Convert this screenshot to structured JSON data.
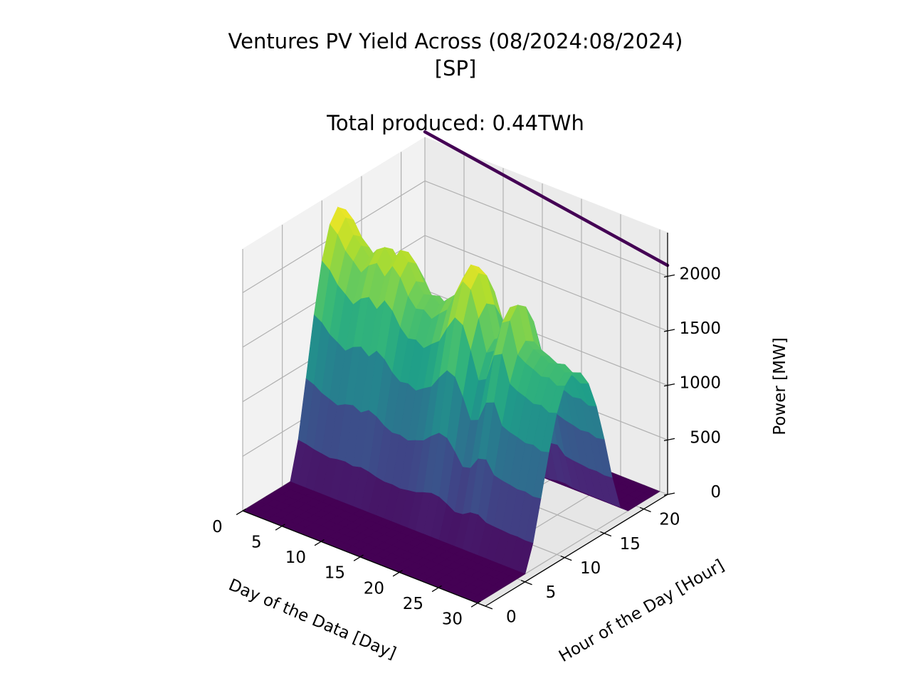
{
  "chart_data": {
    "type": "surface3d",
    "title": "Ventures PV Yield Across (08/2024:08/2024)",
    "title_line2": "[SP]",
    "subtitle": "Total produced: 0.44TWh",
    "xlabel": "Day of the Data [Day]",
    "ylabel": "Hour of the Day [Hour]",
    "zlabel": "Power [MW]",
    "x_ticks": [
      "0",
      "5",
      "10",
      "15",
      "20",
      "25",
      "30"
    ],
    "y_ticks": [
      "0",
      "5",
      "10",
      "15",
      "20"
    ],
    "z_ticks": [
      "0",
      "500",
      "1000",
      "1500",
      "2000"
    ],
    "xlim": [
      0,
      31
    ],
    "ylim": [
      0,
      23
    ],
    "zlim": [
      0,
      2400
    ],
    "colormap": "viridis",
    "grid": true,
    "daylight_hours": [
      7,
      18
    ],
    "hours_profile": [
      0,
      0,
      0,
      0,
      0,
      0,
      0,
      0.15,
      0.38,
      0.62,
      0.82,
      0.95,
      1.0,
      0.97,
      0.88,
      0.72,
      0.5,
      0.25,
      0.05,
      0,
      0,
      0,
      0,
      0
    ],
    "daily_peak_mw": [
      2250,
      2180,
      2050,
      1980,
      1900,
      2000,
      2050,
      1950,
      2080,
      2000,
      1850,
      1760,
      1780,
      1720,
      1800,
      1870,
      2050,
      2200,
      2150,
      1900,
      1600,
      1650,
      1950,
      2000,
      1700,
      1650,
      1620,
      1580,
      1600,
      1550,
      1580
    ],
    "top_line": {
      "from_day": 0,
      "to_day": 31,
      "start_mw": 2450,
      "end_mw": 2100
    }
  }
}
